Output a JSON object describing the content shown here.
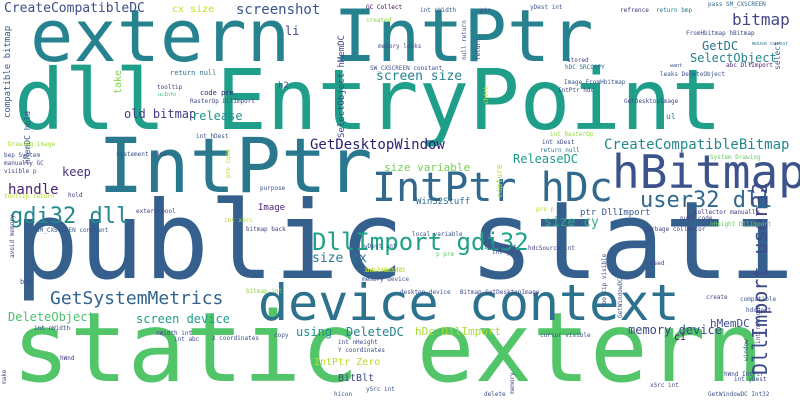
{
  "colors": {
    "background": "#ffffff",
    "palette": [
      "#440154",
      "#482878",
      "#3e4a89",
      "#31688e",
      "#26828e",
      "#1f9e89",
      "#35b779",
      "#6ece58",
      "#b5de2b",
      "#fde725"
    ]
  },
  "words": [
    {
      "text": "public static",
      "color": "#355f8d",
      "weight": 100
    },
    {
      "text": "dll EntryPoint",
      "color": "#1f9e89",
      "weight": 92
    },
    {
      "text": "static extern",
      "color": "#52c569",
      "weight": 88
    },
    {
      "text": "extern IntPtr",
      "color": "#26828e",
      "weight": 85
    },
    {
      "text": "IntPtr",
      "color": "#2a788e",
      "weight": 80
    },
    {
      "text": "device context",
      "color": "#2c728e",
      "weight": 60
    },
    {
      "text": "hBitmap",
      "color": "#3b528b",
      "weight": 55
    },
    {
      "text": "IntPtr hDc",
      "color": "#31688e",
      "weight": 50
    },
    {
      "text": "DllImport gdi32",
      "color": "#1fa188",
      "weight": 40
    },
    {
      "text": "gdi32 dll",
      "color": "#23898e",
      "weight": 38
    },
    {
      "text": "user32 dll",
      "color": "#31688e",
      "weight": 36
    },
    {
      "text": "GetSystemMetrics",
      "color": "#33638d",
      "weight": 34
    },
    {
      "text": "DllImport user32",
      "color": "#3e4989",
      "weight": 32
    },
    {
      "text": "bitmap",
      "color": "#404588",
      "weight": 30
    },
    {
      "text": "GetDesktopWindow",
      "color": "#2d1e6f",
      "weight": 28
    },
    {
      "text": "CreateCompatibleBitmap",
      "color": "#24878e",
      "weight": 26
    },
    {
      "text": "screenshot",
      "color": "#3a548c",
      "weight": 26
    },
    {
      "text": "CreateCompatibleDC",
      "color": "#3d4e8a",
      "weight": 26
    },
    {
      "text": "screen size",
      "color": "#26828e",
      "weight": 25
    },
    {
      "text": "handle",
      "color": "#482173",
      "weight": 24
    },
    {
      "text": "ReleaseDC",
      "color": "#1e9c89",
      "weight": 22
    },
    {
      "text": "size cy",
      "color": "#29af7f",
      "weight": 22
    },
    {
      "text": "size cx",
      "color": "#2a788e",
      "weight": 22
    },
    {
      "text": "memory device",
      "color": "#3e4989",
      "weight": 22
    },
    {
      "text": "DeleteObject",
      "color": "#4ac16d",
      "weight": 22
    },
    {
      "text": "screen device",
      "color": "#1f9e89",
      "weight": 22
    },
    {
      "text": "old bitmap",
      "color": "#433d84",
      "weight": 22
    },
    {
      "text": "DeleteDC",
      "color": "#277f8e",
      "weight": 20
    },
    {
      "text": "GetDC",
      "color": "#2a768e",
      "weight": 20
    },
    {
      "text": "SelectObject",
      "color": "#25848e",
      "weight": 20
    },
    {
      "text": "release",
      "color": "#20928c",
      "weight": 18
    },
    {
      "text": "size variable",
      "color": "#75d054",
      "weight": 18
    },
    {
      "text": "hDc DllImport",
      "color": "#a5db36",
      "weight": 18
    },
    {
      "text": "hMemDC",
      "color": "#3d4e8a",
      "weight": 18
    },
    {
      "text": "keep",
      "color": "#46337f",
      "weight": 18
    },
    {
      "text": "using",
      "color": "#228c8d",
      "weight": 18
    },
    {
      "text": "li",
      "color": "#404688",
      "weight": 16
    },
    {
      "text": "cx size",
      "color": "#c8e020",
      "weight": 14
    },
    {
      "text": "IntPtr Zero",
      "color": "#b5de2b",
      "weight": 14
    },
    {
      "text": "BitBlt",
      "color": "#3f4788",
      "weight": 14
    },
    {
      "text": "ci",
      "color": "#440154",
      "weight": 14
    },
    {
      "text": "Win32Stuff",
      "color": "#2f6c8e",
      "weight": 12
    },
    {
      "text": "ptr DllImport",
      "color": "#38588c",
      "weight": 12
    },
    {
      "text": "hMemDC hold",
      "color": "#3b528b",
      "weight": 12
    },
    {
      "text": "SelectObject hMemDC",
      "color": "#3e4a89",
      "weight": 12
    },
    {
      "text": "compatible bitmap",
      "color": "#38588c",
      "weight": 12
    },
    {
      "text": "take",
      "color": "#84d44b",
      "weight": 12
    },
    {
      "text": "capture",
      "color": "#a8db34",
      "weight": 10
    },
    {
      "text": "h2",
      "color": "#355f8d",
      "weight": 10
    },
    {
      "text": "Image",
      "color": "#482374",
      "weight": 10
    },
    {
      "text": "ul",
      "color": "#2a788e",
      "weight": 10
    },
    {
      "text": "return null",
      "color": "#2d708e",
      "weight": 8
    },
    {
      "text": "code pre",
      "color": "#2d1e6f",
      "weight": 8
    },
    {
      "text": "GC Collect",
      "color": "#440154",
      "weight": 7
    },
    {
      "text": "int hDest",
      "color": "#3b528b",
      "weight": 7
    },
    {
      "text": "return bmp",
      "color": "#2a788e",
      "weight": 6
    },
    {
      "text": "refrence",
      "color": "#46307e",
      "weight": 6
    },
    {
      "text": "pass SM_CXSCREEN",
      "color": "#31688e",
      "weight": 6
    },
    {
      "text": "ptr",
      "color": "#3e4a89",
      "weight": 6
    },
    {
      "text": "int nWidth",
      "color": "#38588c",
      "weight": 6
    },
    {
      "text": "memory leaks",
      "color": "#3d4e8a",
      "weight": 6
    },
    {
      "text": "created",
      "color": "#8bd646",
      "weight": 6
    },
    {
      "text": "yDest int",
      "color": "#39558c",
      "weight": 6
    },
    {
      "text": "SW_CXSCREEN constant",
      "color": "#3b528b",
      "weight": 6
    },
    {
      "text": "SM_CXSCREEN constant",
      "color": "#38588c",
      "weight": 6
    },
    {
      "text": "RasterOp DllImport",
      "color": "#3e4989",
      "weight": 6
    },
    {
      "text": "tooltip",
      "color": "#404588",
      "weight": 6
    },
    {
      "text": "ucInfo",
      "color": "#35b779",
      "weight": 5
    },
    {
      "text": "stored",
      "color": "#404688",
      "weight": 6
    },
    {
      "text": "hDC SRCCOPY",
      "color": "#2f6c8e",
      "weight": 6
    },
    {
      "text": "abc DllImport",
      "color": "#482677",
      "weight": 6
    },
    {
      "text": "leaks DeleteObject",
      "color": "#3b528b",
      "weight": 6
    },
    {
      "text": "Image FromHbitmap",
      "color": "#3a548c",
      "weight": 6
    },
    {
      "text": "FromHbitmap hBitmap",
      "color": "#3f4788",
      "weight": 6
    },
    {
      "text": "mouse cursor",
      "color": "#2c728e",
      "weight": 5
    },
    {
      "text": "want",
      "color": "#3b528b",
      "weight": 5
    },
    {
      "text": "select",
      "color": "#355f8d",
      "weight": 6
    },
    {
      "text": "null code",
      "color": "#433d84",
      "weight": 6
    },
    {
      "text": "collector manually",
      "color": "#46307e",
      "weight": 6
    },
    {
      "text": "nHeight DllImport",
      "color": "#5ec962",
      "weight": 6
    },
    {
      "text": "garbage collector",
      "color": "#404588",
      "weight": 6
    },
    {
      "text": "System Drawing",
      "color": "#65cb5e",
      "weight": 6
    },
    {
      "text": "return null",
      "color": "#2a788e",
      "weight": 6
    },
    {
      "text": "int xDest",
      "color": "#3e4989",
      "weight": 6
    },
    {
      "text": "int RasterOp",
      "color": "#90d743",
      "weight": 6
    },
    {
      "text": "bep System",
      "color": "#3b528b",
      "weight": 6
    },
    {
      "text": "manually GC",
      "color": "#404588",
      "weight": 6
    },
    {
      "text": "visible p",
      "color": "#3e4989",
      "weight": 6
    },
    {
      "text": "tooltip return",
      "color": "#b5de2b",
      "weight": 6
    },
    {
      "text": "Drawing image",
      "color": "#a2da37",
      "weight": 6
    },
    {
      "text": "statement runs",
      "color": "#3a548c",
      "weight": 6
    },
    {
      "text": "hold",
      "color": "#46307e",
      "weight": 6
    },
    {
      "text": "purpose",
      "color": "#3b528b",
      "weight": 6
    },
    {
      "text": "bitmap back",
      "color": "#404588",
      "weight": 6
    },
    {
      "text": "local variable",
      "color": "#3b528b",
      "weight": 6
    },
    {
      "text": "int xSrc",
      "color": "#a8db34",
      "weight": 6
    },
    {
      "text": "extern bool",
      "color": "#3e4989",
      "weight": 6
    },
    {
      "text": "int yDest",
      "color": "#3b528b",
      "weight": 6
    },
    {
      "text": "hdcSource int",
      "color": "#404588",
      "weight": 6
    },
    {
      "text": "wDest int",
      "color": "#355f8d",
      "weight": 6
    },
    {
      "text": "int nHeight",
      "color": "#b0dd2f",
      "weight": 6
    },
    {
      "text": "bool BitBlt",
      "color": "#bddf26",
      "weight": 6
    },
    {
      "text": "memory device",
      "color": "#3b528b",
      "weight": 6
    },
    {
      "text": "desktop device",
      "color": "#39558c",
      "weight": 6
    },
    {
      "text": "Bitmap GetDesktopImage",
      "color": "#3e4989",
      "weight": 6
    },
    {
      "text": "used",
      "color": "#404588",
      "weight": 6
    },
    {
      "text": "avoid memory",
      "color": "#404588",
      "weight": 6
    },
    {
      "text": "bmp",
      "color": "#3b528b",
      "weight": 6
    },
    {
      "text": "bitmap int",
      "color": "#90d743",
      "weight": 6
    },
    {
      "text": "int nWidth",
      "color": "#3e4989",
      "weight": 6
    },
    {
      "text": "nWidth int",
      "color": "#3e4989",
      "weight": 6
    },
    {
      "text": "int abc",
      "color": "#3e4989",
      "weight": 6
    },
    {
      "text": "X coordinates",
      "color": "#3e4989",
      "weight": 6
    },
    {
      "text": "int nHeight",
      "color": "#3e4989",
      "weight": 6
    },
    {
      "text": "Y coordinates",
      "color": "#3e4989",
      "weight": 6
    },
    {
      "text": "copy",
      "color": "#3b528b",
      "weight": 6
    },
    {
      "text": "hWnd",
      "color": "#46307e",
      "weight": 6
    },
    {
      "text": "make",
      "color": "#3e4989",
      "weight": 6
    },
    {
      "text": "hicon",
      "color": "#3b528b",
      "weight": 6
    },
    {
      "text": "ySrc int",
      "color": "#3b528b",
      "weight": 6
    },
    {
      "text": "delete",
      "color": "#3e4989",
      "weight": 6
    },
    {
      "text": "memory",
      "color": "#404588",
      "weight": 6
    },
    {
      "text": "cursor visible",
      "color": "#3b528b",
      "weight": 6
    },
    {
      "text": "GetWindowDC",
      "color": "#3b528b",
      "weight": 6
    },
    {
      "text": "tooltip visible",
      "color": "#3e4989",
      "weight": 6
    },
    {
      "text": "xSrc int",
      "color": "#3e4989",
      "weight": 6
    },
    {
      "text": "int yDest",
      "color": "#404588",
      "weight": 6
    },
    {
      "text": "GetWindowDC Int32",
      "color": "#3b528b",
      "weight": 6
    },
    {
      "text": "compatible",
      "color": "#3b528b",
      "weight": 6
    },
    {
      "text": "create",
      "color": "#404588",
      "weight": 6
    },
    {
      "text": "window",
      "color": "#3e4989",
      "weight": 6
    },
    {
      "text": "pre code",
      "color": "#b5de2b",
      "weight": 6
    },
    {
      "text": "pre p",
      "color": "#b5de2b",
      "weight": 6
    },
    {
      "text": "p pre",
      "color": "#5ec962",
      "weight": 6
    },
    {
      "text": "check",
      "color": "#d2e21b",
      "weight": 6
    },
    {
      "text": "int ySrc",
      "color": "#3e4989",
      "weight": 6
    },
    {
      "text": "null return",
      "color": "#3e4989",
      "weight": 6
    },
    {
      "text": "int nHeight",
      "color": "#3e4989",
      "weight": 6
    },
    {
      "text": "hdcDest",
      "color": "#3e4989",
      "weight": 6
    },
    {
      "text": "hWnd IntPtr",
      "color": "#3e4989",
      "weight": 6
    },
    {
      "text": "return",
      "color": "#3e4989",
      "weight": 6
    },
    {
      "text": "GetDesktopImage",
      "color": "#3e4989",
      "weight": 6
    },
    {
      "text": "IntPtr hdc",
      "color": "#3e4989",
      "weight": 6
    }
  ]
}
